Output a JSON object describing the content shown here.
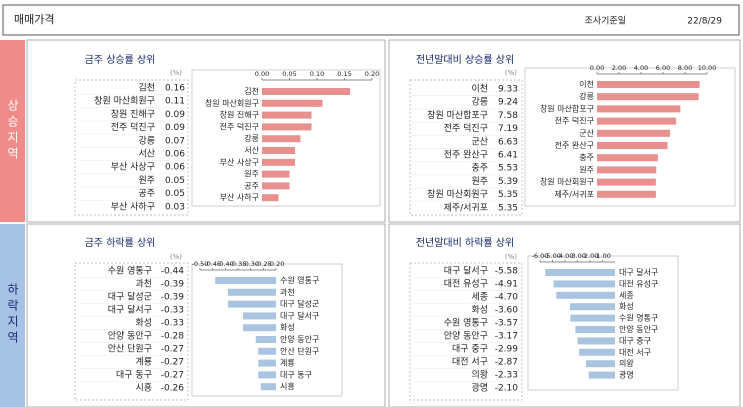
{
  "header": {
    "title": "매매가격",
    "date_label": "조사기준일",
    "date": "22/8/29"
  },
  "sections": [
    "상승지역",
    "하락지역"
  ],
  "chart_data": [
    {
      "type": "bar",
      "orientation": "horizontal",
      "title": "금주 상승률 상위",
      "unit": "(%)",
      "color": "#e8908e",
      "categories": [
        "김천",
        "창원 마산회원구",
        "창원 진해구",
        "전주 덕진구",
        "강릉",
        "서산",
        "부산 사상구",
        "원주",
        "공주",
        "부산 사하구"
      ],
      "values": [
        0.16,
        0.11,
        0.09,
        0.09,
        0.07,
        0.06,
        0.06,
        0.05,
        0.05,
        0.03
      ],
      "xlim": [
        0,
        0.2
      ],
      "xticks": [
        {
          "value": 0,
          "label": "0.00"
        },
        0.05,
        {
          "value": 0.1,
          "label": "0.10"
        },
        0.15,
        {
          "value": 0.2,
          "label": "0.20"
        }
      ]
    },
    {
      "type": "bar",
      "orientation": "horizontal",
      "title": "전년말대비 상승률 상위",
      "unit": "(%)",
      "color": "#e8908e",
      "categories": [
        "이천",
        "강릉",
        "창원 마산합포구",
        "전주 덕진구",
        "군산",
        "전주 완산구",
        "충주",
        "원주",
        "창원 마산회원구",
        "제주/서귀포"
      ],
      "values": [
        9.33,
        9.24,
        7.58,
        7.19,
        6.63,
        6.41,
        5.53,
        5.39,
        5.35,
        5.35
      ],
      "xlim": [
        0,
        10
      ],
      "xticks": [
        {
          "value": 0,
          "label": "0.00"
        },
        {
          "value": 2,
          "label": "2.00"
        },
        {
          "value": 4,
          "label": "4.00"
        },
        {
          "value": 6,
          "label": "6.00"
        },
        {
          "value": 8,
          "label": "8.00"
        },
        {
          "value": 10,
          "label": "10.00"
        }
      ]
    },
    {
      "type": "bar",
      "orientation": "horizontal",
      "title": "금주 하락률 상위",
      "unit": "(%)",
      "color": "#a9c4e0",
      "categories": [
        "수원 영통구",
        "과천",
        "대구 달성군",
        "대구 달서구",
        "화성",
        "안양 동안구",
        "안산 단원구",
        "계룡",
        "대구 동구",
        "시흥"
      ],
      "values": [
        -0.44,
        -0.39,
        -0.39,
        -0.33,
        -0.33,
        -0.28,
        -0.27,
        -0.27,
        -0.27,
        -0.26
      ],
      "xlim": [
        -0.5,
        -0.2
      ],
      "xticks": [
        {
          "value": -0.5,
          "label": "-0.50"
        },
        -0.45,
        {
          "value": -0.4,
          "label": "-0.40"
        },
        -0.35,
        {
          "value": -0.3,
          "label": "-0.30"
        },
        -0.25,
        {
          "value": -0.2,
          "label": "-0.20"
        }
      ]
    },
    {
      "type": "bar",
      "orientation": "horizontal",
      "title": "전년말대비 하락률 상위",
      "unit": "(%)",
      "color": "#a9c4e0",
      "categories": [
        "대구 달서구",
        "대전 유성구",
        "세종",
        "화성",
        "수원 영통구",
        "안양 동안구",
        "대구 중구",
        "대전 서구",
        "의왕",
        "광명"
      ],
      "values": [
        -5.58,
        -4.91,
        -4.7,
        -3.6,
        -3.57,
        -3.17,
        -2.99,
        -2.87,
        -2.33,
        -2.1
      ],
      "value_labels": [
        "-5.58",
        "-4.91",
        "-4.70",
        "-3.60",
        "-3.57",
        "-3.17",
        "-2.99",
        "-2.87",
        "-2.33",
        "-2.10"
      ],
      "xlim": [
        -6,
        0
      ],
      "xticks": [
        {
          "value": -6,
          "label": "-6.00"
        },
        {
          "value": -5,
          "label": "-5.00"
        },
        {
          "value": -4,
          "label": "-4.00"
        },
        {
          "value": -3,
          "label": "-3.00"
        },
        {
          "value": -2,
          "label": "-2.00"
        },
        {
          "value": -1,
          "label": "-1.00"
        }
      ]
    }
  ]
}
